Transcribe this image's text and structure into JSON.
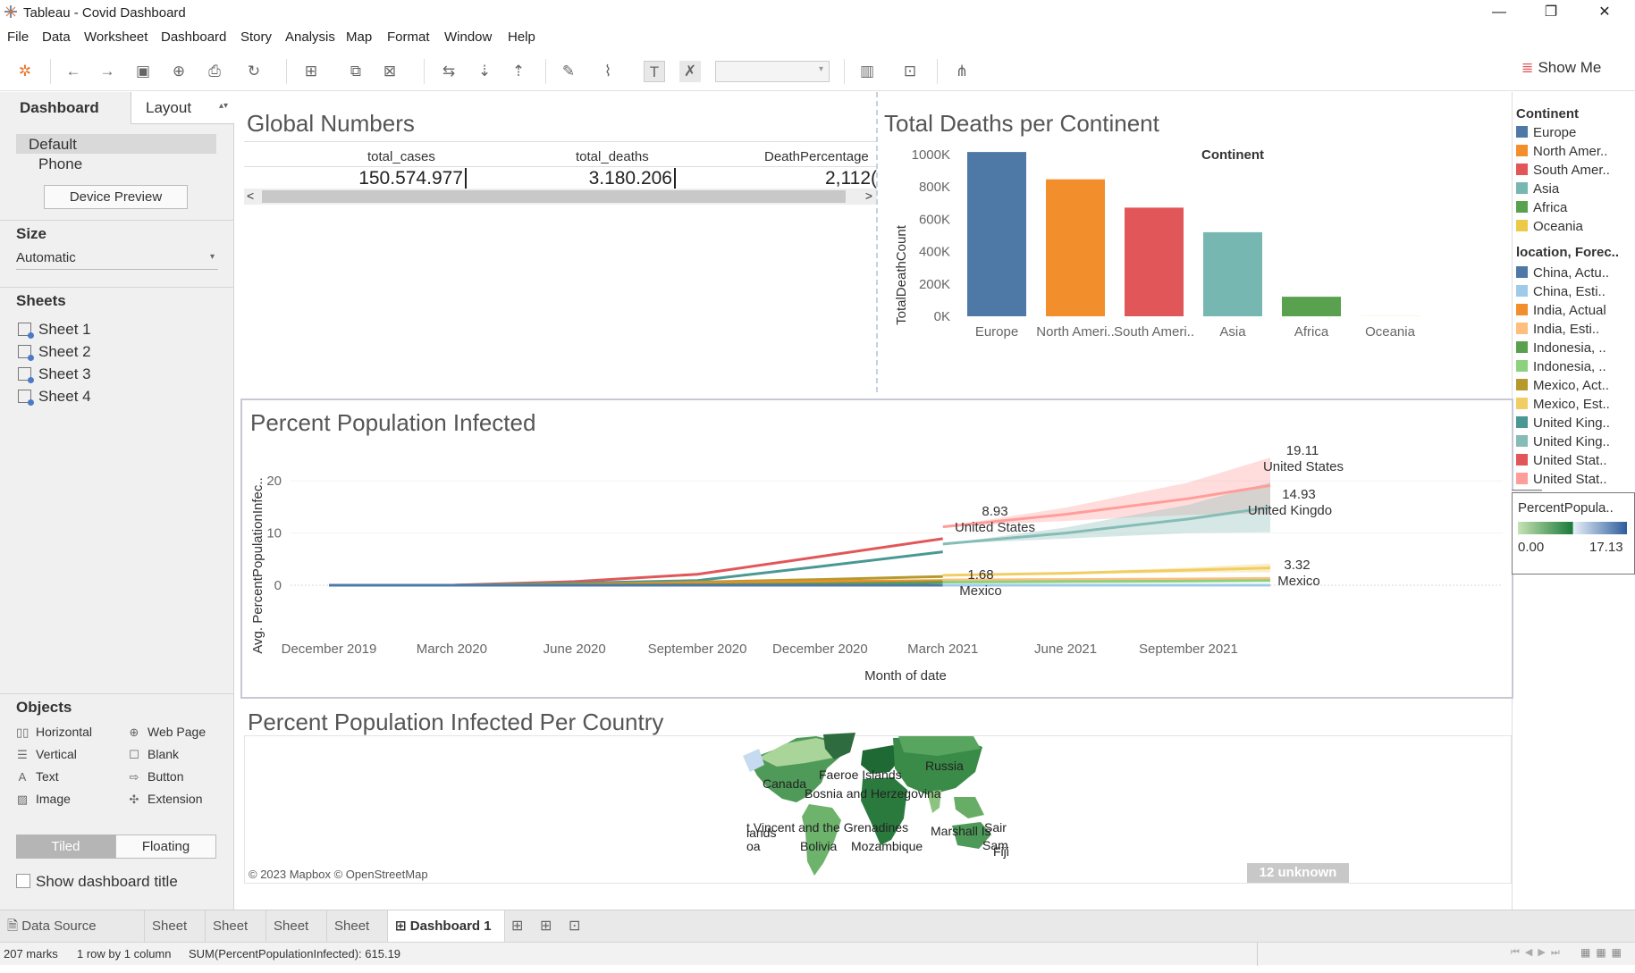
{
  "window": {
    "title": "Tableau - Covid Dashboard",
    "minimize": "—",
    "restore": "❐",
    "close": "✕"
  },
  "menu": [
    "File",
    "Data",
    "Worksheet",
    "Dashboard",
    "Story",
    "Analysis",
    "Map",
    "Format",
    "Window",
    "Help"
  ],
  "toolbar": {
    "show_me": "Show Me"
  },
  "left": {
    "tab_dashboard": "Dashboard",
    "tab_layout": "Layout",
    "devices": [
      "Default",
      "Phone"
    ],
    "device_preview": "Device Preview",
    "size_title": "Size",
    "size_value": "Automatic",
    "sheets_title": "Sheets",
    "sheets": [
      "Sheet 1",
      "Sheet 2",
      "Sheet 3",
      "Sheet 4"
    ],
    "objects_title": "Objects",
    "objects": [
      {
        "label": "Horizontal",
        "icon": "horizontal-icon"
      },
      {
        "label": "Web Page",
        "icon": "globe-icon"
      },
      {
        "label": "Vertical",
        "icon": "vertical-icon"
      },
      {
        "label": "Blank",
        "icon": "blank-icon"
      },
      {
        "label": "Text",
        "icon": "text-icon"
      },
      {
        "label": "Button",
        "icon": "button-icon"
      },
      {
        "label": "Image",
        "icon": "image-icon"
      },
      {
        "label": "Extension",
        "icon": "extension-icon"
      }
    ],
    "tiled": "Tiled",
    "floating": "Floating",
    "show_title": "Show dashboard title"
  },
  "global": {
    "title": "Global Numbers",
    "headers": [
      "total_cases",
      "total_deaths",
      "DeathPercentage"
    ],
    "values": [
      "150.574.977",
      "3.180.206",
      "2,112("
    ]
  },
  "deaths": {
    "title": "Total Deaths per Continent",
    "header": "Continent",
    "ylabel": "TotalDeathCount",
    "yticks": [
      "1000K",
      "800K",
      "600K",
      "400K",
      "200K",
      "0K"
    ],
    "category_labels": [
      "Europe",
      "North Ameri..",
      "South Ameri..",
      "Asia",
      "Africa",
      "Oceania"
    ]
  },
  "infected": {
    "title": "Percent Population Infected",
    "ylabel": "Avg. PercentPopulationInfec..",
    "xlabel": "Month of date",
    "yticks": [
      "20",
      "10",
      "0"
    ],
    "xticks": [
      "December 2019",
      "March 2020",
      "June 2020",
      "September 2020",
      "December 2020",
      "March 2021",
      "June 2021",
      "September 2021"
    ],
    "labels": [
      {
        "value": "8.93",
        "name": "United States"
      },
      {
        "value": "1.68",
        "name": "Mexico"
      },
      {
        "value": "19.11",
        "name": "United States"
      },
      {
        "value": "14.93",
        "name": "United Kingdo"
      },
      {
        "value": "3.32",
        "name": "Mexico"
      }
    ]
  },
  "map": {
    "title": "Percent Population Infected Per Country",
    "attribution": "© 2023 Mapbox © OpenStreetMap",
    "unknown": "12 unknown",
    "labels": [
      "Russia",
      "Canada",
      "Faeroe Islands",
      "Bosnia and Herzegovina",
      "t Vincent and the Grenadines",
      "lands",
      "oa",
      "Bolivia",
      "Mozambique",
      "Marshall Is",
      "Sair",
      "Sam",
      "Fiji"
    ]
  },
  "legend": {
    "continent_title": "Continent",
    "continents": [
      {
        "label": "Europe",
        "color": "#4e79a7"
      },
      {
        "label": "North Amer..",
        "color": "#f28e2b"
      },
      {
        "label": "South Amer..",
        "color": "#e15759"
      },
      {
        "label": "Asia",
        "color": "#76b7b2"
      },
      {
        "label": "Africa",
        "color": "#59a14f"
      },
      {
        "label": "Oceania",
        "color": "#edc948"
      }
    ],
    "location_title": "location, Forec..",
    "locations": [
      {
        "label": "China, Actu..",
        "color": "#4e79a7"
      },
      {
        "label": "China, Esti..",
        "color": "#a0cbe8"
      },
      {
        "label": "India, Actual",
        "color": "#f28e2b"
      },
      {
        "label": "India, Esti..",
        "color": "#ffbe7d"
      },
      {
        "label": "Indonesia, ..",
        "color": "#59a14f"
      },
      {
        "label": "Indonesia, ..",
        "color": "#8cd17d"
      },
      {
        "label": "Mexico, Act..",
        "color": "#b6992d"
      },
      {
        "label": "Mexico, Est..",
        "color": "#f1ce63"
      },
      {
        "label": "United King..",
        "color": "#499894"
      },
      {
        "label": "United King..",
        "color": "#86bcb6"
      },
      {
        "label": "United Stat..",
        "color": "#e15759"
      },
      {
        "label": "United Stat..",
        "color": "#ff9d9a"
      }
    ],
    "ppi_title": "PercentPopula..",
    "ppi_min": "0.00",
    "ppi_max": "17.13"
  },
  "tabs": {
    "data_source": "Data Source",
    "sheets": [
      "Sheet 1",
      "Sheet 2",
      "Sheet 3",
      "Sheet 4"
    ],
    "dashboard": "Dashboard 1"
  },
  "status": {
    "marks": "207 marks",
    "rows": "1 row by 1 column",
    "sum": "SUM(PercentPopulationInfected): 615.19"
  },
  "chart_data": [
    {
      "type": "bar",
      "title": "Total Deaths per Continent",
      "xlabel": "Continent",
      "ylabel": "TotalDeathCount",
      "categories": [
        "Europe",
        "North America",
        "South America",
        "Asia",
        "Africa",
        "Oceania"
      ],
      "values": [
        1016000,
        847000,
        672000,
        520000,
        121000,
        1000
      ],
      "colors": [
        "#4e79a7",
        "#f28e2b",
        "#e15759",
        "#76b7b2",
        "#59a14f",
        "#edc948"
      ],
      "ylim": [
        0,
        1000000
      ]
    },
    {
      "type": "line",
      "title": "Percent Population Infected",
      "xlabel": "Month of date",
      "ylabel": "Avg. PercentPopulationInfec..",
      "x": [
        "2019-12",
        "2020-03",
        "2020-06",
        "2020-09",
        "2020-12",
        "2021-03",
        "2021-06",
        "2021-09",
        "2021-11"
      ],
      "ylim": [
        0,
        25
      ],
      "series": [
        {
          "name": "United States, Actual",
          "color": "#e15759",
          "values": [
            0,
            0,
            0.7,
            2.1,
            5.5,
            8.93,
            null,
            null,
            null
          ]
        },
        {
          "name": "United Kingdom, Actual",
          "color": "#499894",
          "values": [
            0,
            0,
            0.4,
            0.9,
            3.6,
            6.4,
            null,
            null,
            null
          ]
        },
        {
          "name": "Mexico, Actual",
          "color": "#b6992d",
          "values": [
            0,
            0,
            0.2,
            0.6,
            1.1,
            1.68,
            null,
            null,
            null
          ]
        },
        {
          "name": "India, Actual",
          "color": "#f28e2b",
          "values": [
            0,
            0,
            0.05,
            0.4,
            0.7,
            0.9,
            null,
            null,
            null
          ]
        },
        {
          "name": "Indonesia, Actual",
          "color": "#59a14f",
          "values": [
            0,
            0,
            0.02,
            0.1,
            0.25,
            0.55,
            null,
            null,
            null
          ]
        },
        {
          "name": "China, Actual",
          "color": "#4e79a7",
          "values": [
            0,
            0.01,
            0.01,
            0.01,
            0.01,
            0.01,
            null,
            null,
            null
          ]
        },
        {
          "name": "United States, Estimate",
          "color": "#ff9d9a",
          "values": [
            null,
            null,
            null,
            null,
            null,
            11.2,
            13.6,
            16.6,
            19.11
          ]
        },
        {
          "name": "United Kingdom, Estimate",
          "color": "#86bcb6",
          "values": [
            null,
            null,
            null,
            null,
            null,
            7.9,
            10.0,
            12.7,
            14.93
          ]
        },
        {
          "name": "Mexico, Estimate",
          "color": "#f1ce63",
          "values": [
            null,
            null,
            null,
            null,
            null,
            1.9,
            2.3,
            2.9,
            3.32
          ]
        },
        {
          "name": "India, Estimate",
          "color": "#ffbe7d",
          "values": [
            null,
            null,
            null,
            null,
            null,
            1.0,
            1.1,
            1.2,
            1.3
          ]
        },
        {
          "name": "Indonesia, Estimate",
          "color": "#8cd17d",
          "values": [
            null,
            null,
            null,
            null,
            null,
            0.6,
            0.7,
            0.8,
            0.9
          ]
        },
        {
          "name": "China, Estimate",
          "color": "#a0cbe8",
          "values": [
            null,
            null,
            null,
            null,
            null,
            0.01,
            0.01,
            0.01,
            0.01
          ]
        }
      ]
    }
  ]
}
